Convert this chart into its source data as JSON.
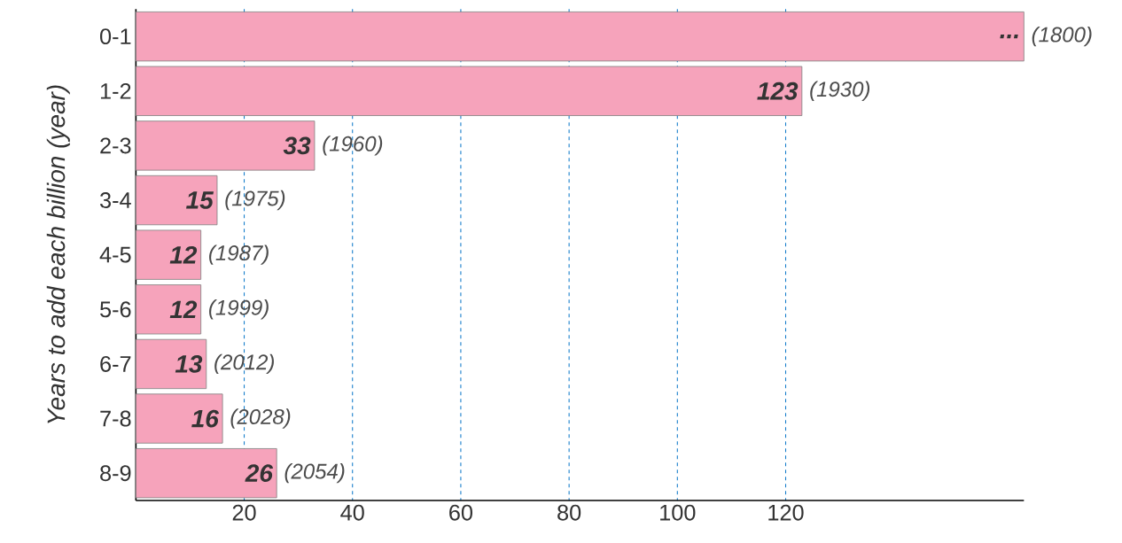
{
  "chart_data": {
    "type": "bar",
    "orientation": "horizontal",
    "ylabel": "Years to add each billion (year)",
    "categories": [
      "0-1",
      "1-2",
      "2-3",
      "3-4",
      "4-5",
      "5-6",
      "6-7",
      "7-8",
      "8-9"
    ],
    "values": [
      164,
      123,
      33,
      15,
      12,
      12,
      13,
      16,
      26
    ],
    "value_labels": [
      "...",
      "123",
      "33",
      "15",
      "12",
      "12",
      "13",
      "16",
      "26"
    ],
    "color": "#f6a3bb",
    "xlim": [
      0,
      164
    ],
    "xticks": [
      20,
      40,
      60,
      80,
      100,
      120
    ],
    "grid": "x",
    "annotations": [
      "(1800)",
      "(1930)",
      "(1960)",
      "(1975)",
      "(1987)",
      "(1999)",
      "(2012)",
      "(2028)",
      "(2054)"
    ]
  }
}
